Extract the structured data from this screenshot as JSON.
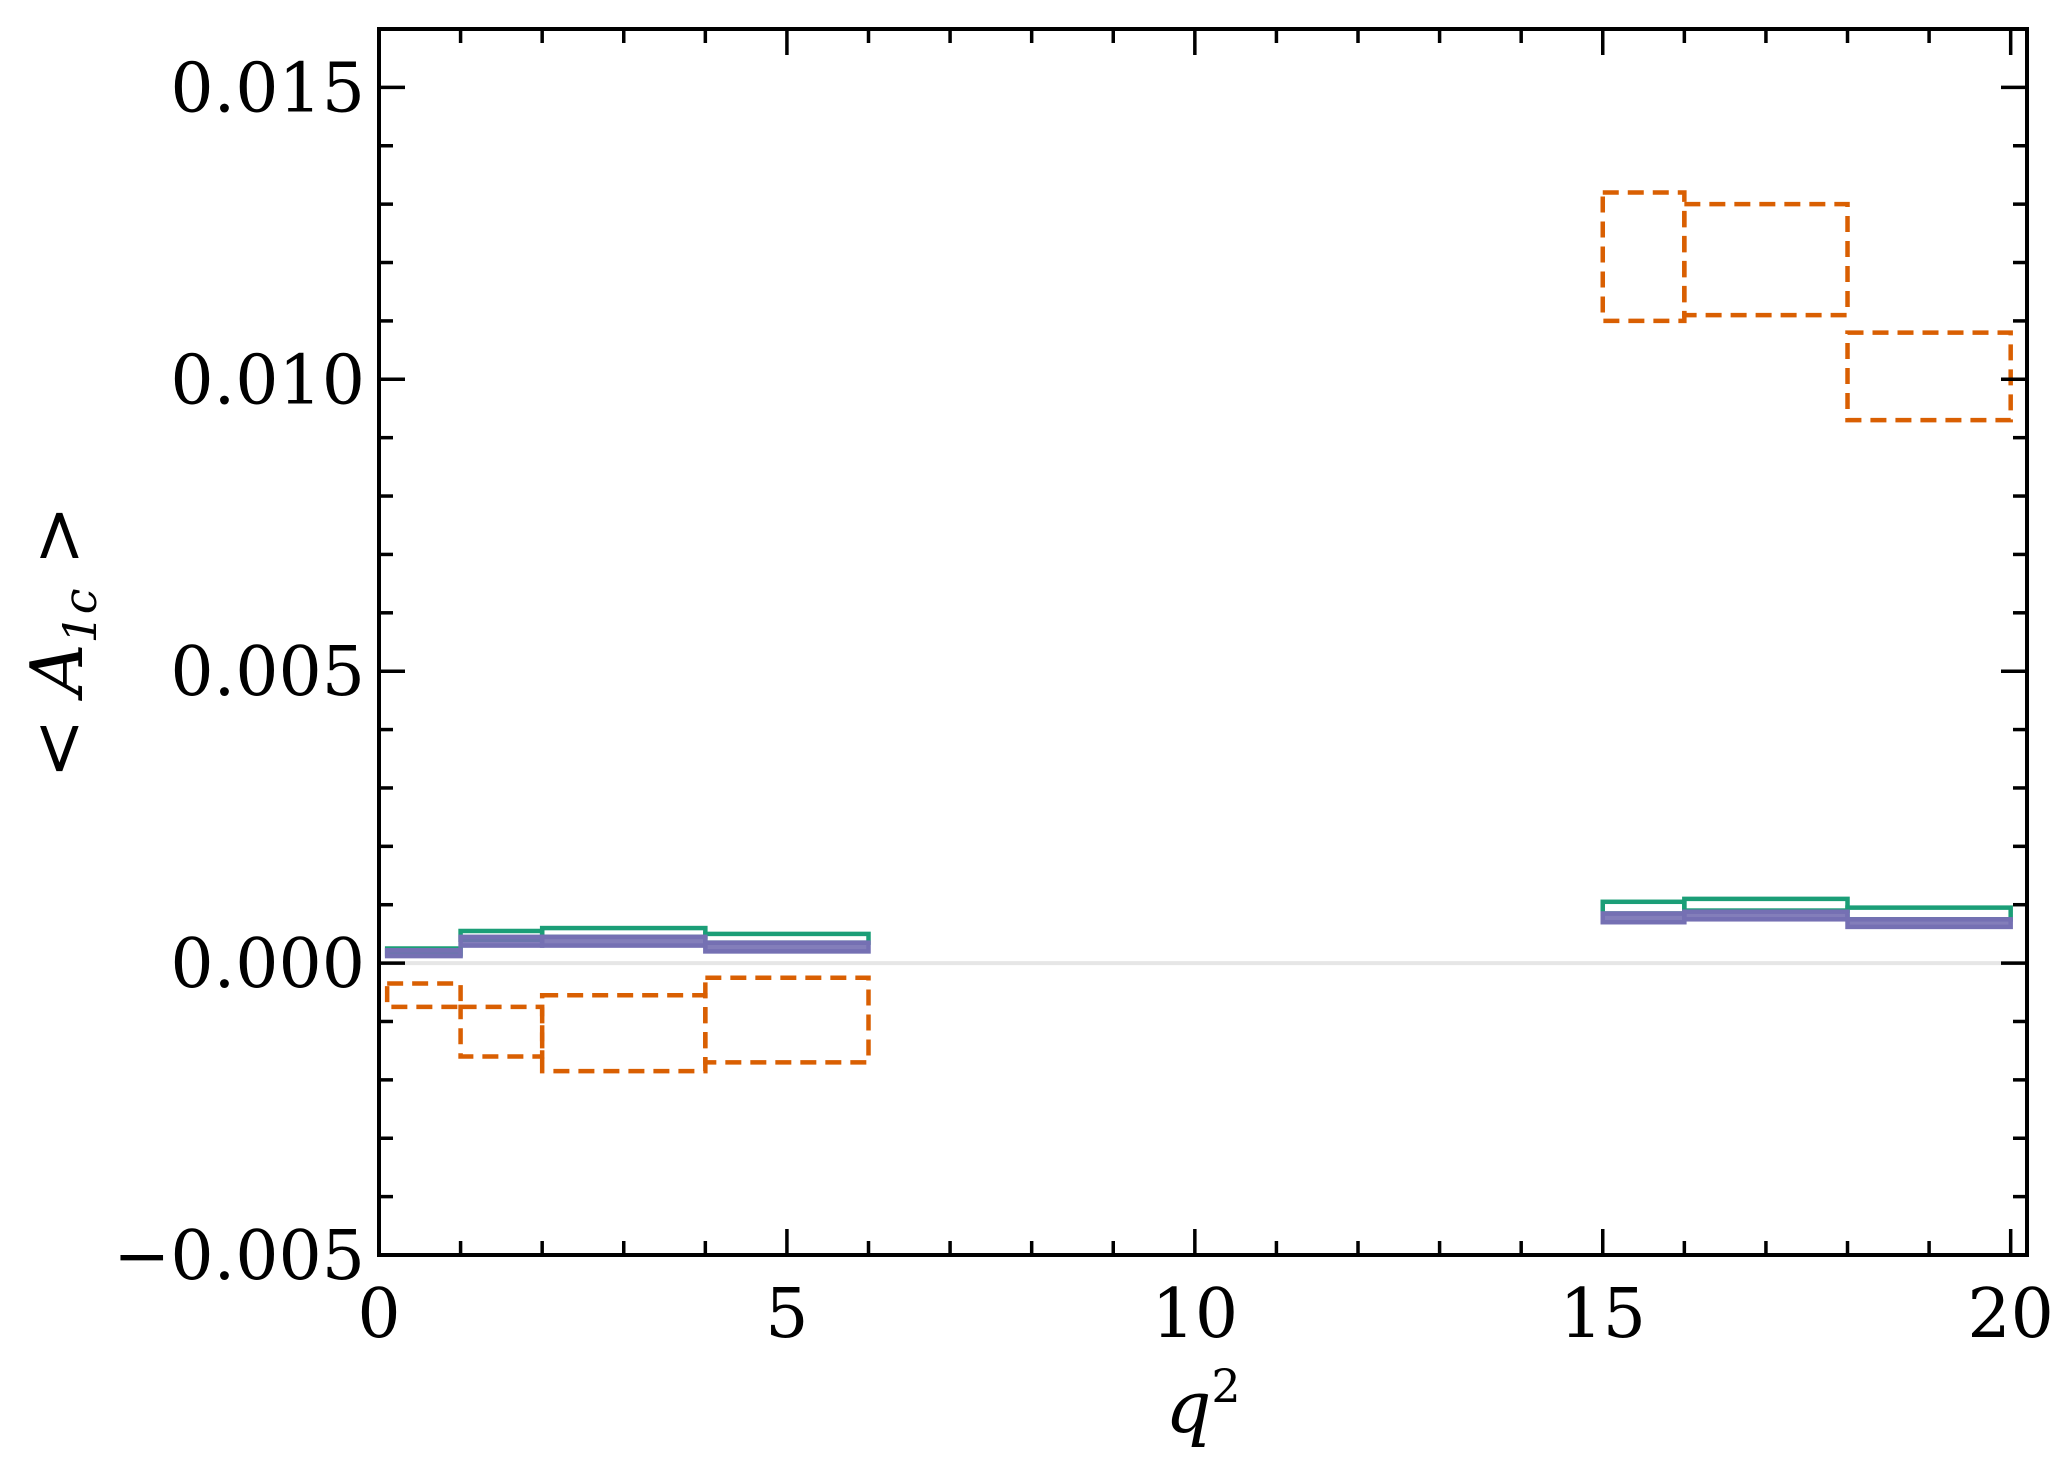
{
  "chart_data": {
    "type": "bar",
    "title": "",
    "xlabel": "q",
    "xlabel_sup": "2",
    "ylabel": "< A",
    "ylabel_sub": "1c",
    "ylabel_tail": " >",
    "xlim": [
      0,
      20.2
    ],
    "ylim": [
      -0.005,
      0.016
    ],
    "xticks": [
      0,
      5,
      10,
      15,
      20
    ],
    "xtick_labels": [
      "0",
      "5",
      "10",
      "15",
      "20"
    ],
    "yticks": [
      -0.005,
      0.0,
      0.005,
      0.01,
      0.015
    ],
    "ytick_labels": [
      "−0.005",
      "0.000",
      "0.005",
      "0.010",
      "0.015"
    ],
    "reference_line_y": 0.0,
    "grid": false,
    "colors": {
      "orange": "#d95f02",
      "green": "#1b9e77",
      "purple": "#7570b3",
      "zero_line": "#e6e6e6"
    },
    "series": [
      {
        "color": "#d95f02",
        "style": "dashed",
        "bins": [
          {
            "x0": 0.1,
            "x1": 1.0,
            "y0": -0.00075,
            "y1": -0.00035
          },
          {
            "x0": 1.0,
            "x1": 2.0,
            "y0": -0.0016,
            "y1": -0.00075
          },
          {
            "x0": 2.0,
            "x1": 4.0,
            "y0": -0.00185,
            "y1": -0.00055
          },
          {
            "x0": 4.0,
            "x1": 6.0,
            "y0": -0.0017,
            "y1": -0.00025
          },
          {
            "x0": 15.0,
            "x1": 16.0,
            "y0": 0.011,
            "y1": 0.0132
          },
          {
            "x0": 16.0,
            "x1": 18.0,
            "y0": 0.0111,
            "y1": 0.013
          },
          {
            "x0": 18.0,
            "x1": 20.0,
            "y0": 0.0093,
            "y1": 0.0108
          }
        ]
      },
      {
        "color": "#1b9e77",
        "style": "solid",
        "bins": [
          {
            "x0": 0.1,
            "x1": 1.0,
            "y0": 0.00015,
            "y1": 0.00025
          },
          {
            "x0": 1.0,
            "x1": 2.0,
            "y0": 0.0004,
            "y1": 0.00055
          },
          {
            "x0": 2.0,
            "x1": 4.0,
            "y0": 0.00045,
            "y1": 0.0006
          },
          {
            "x0": 4.0,
            "x1": 6.0,
            "y0": 0.00035,
            "y1": 0.0005
          },
          {
            "x0": 15.0,
            "x1": 16.0,
            "y0": 0.00085,
            "y1": 0.00105
          },
          {
            "x0": 16.0,
            "x1": 18.0,
            "y0": 0.0009,
            "y1": 0.0011
          },
          {
            "x0": 18.0,
            "x1": 20.0,
            "y0": 0.00075,
            "y1": 0.00095
          }
        ]
      },
      {
        "color": "#7570b3",
        "style": "solid",
        "bins": [
          {
            "x0": 0.1,
            "x1": 1.0,
            "y0": 0.00012,
            "y1": 0.00022
          },
          {
            "x0": 1.0,
            "x1": 2.0,
            "y0": 0.0003,
            "y1": 0.00045
          },
          {
            "x0": 2.0,
            "x1": 4.0,
            "y0": 0.0003,
            "y1": 0.00045
          },
          {
            "x0": 4.0,
            "x1": 6.0,
            "y0": 0.0002,
            "y1": 0.00035
          },
          {
            "x0": 15.0,
            "x1": 16.0,
            "y0": 0.0007,
            "y1": 0.00085
          },
          {
            "x0": 16.0,
            "x1": 18.0,
            "y0": 0.00075,
            "y1": 0.00088
          },
          {
            "x0": 18.0,
            "x1": 20.0,
            "y0": 0.00062,
            "y1": 0.00075
          }
        ]
      }
    ]
  }
}
